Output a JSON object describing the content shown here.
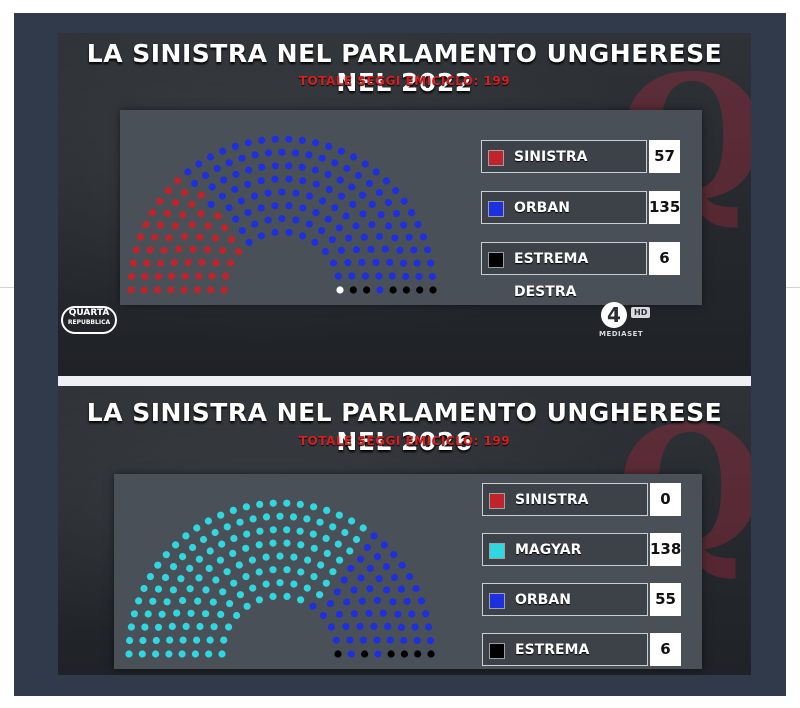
{
  "charts": [
    {
      "title": "LA SINISTRA NEL PARLAMENTO UNGHERESE NEL 2022",
      "subtitle": "TOTALE SEGGI EMICICLO: 199",
      "legend": [
        {
          "label": "SINISTRA",
          "value": "57",
          "color": "#c0242a"
        },
        {
          "label": "ORBAN",
          "value": "135",
          "color": "#1e2fe0"
        },
        {
          "label": "ESTREMA DESTRA",
          "value": "6",
          "color": "#000000"
        }
      ]
    },
    {
      "title": "LA SINISTRA NEL PARLAMENTO UNGHERESE NEL 2026",
      "subtitle": "TOTALE SEGGI EMICICLO: 199",
      "legend": [
        {
          "label": "SINISTRA",
          "value": "0",
          "color": "#c0242a"
        },
        {
          "label": "MAGYAR",
          "value": "138",
          "color": "#2fd8e0"
        },
        {
          "label": "ORBAN",
          "value": "55",
          "color": "#1e2fe0"
        },
        {
          "label": "ESTREMA DESTRA",
          "value": "6",
          "color": "#000000"
        }
      ]
    }
  ],
  "branding": {
    "show_logo": "QUARTA",
    "show_logo_sub": "REPUBBLICA",
    "channel": "4",
    "hd": "HD",
    "network": "MEDIASET",
    "watermark": "Q"
  },
  "chart_data": [
    {
      "type": "parliament",
      "title": "LA SINISTRA NEL PARLAMENTO UNGHERESE NEL 2022",
      "subtitle": "TOTALE SEGGI EMICICLO: 199",
      "categories": [
        "SINISTRA",
        "ORBAN",
        "ESTREMA DESTRA"
      ],
      "values": [
        57,
        135,
        6
      ],
      "colors": [
        "#c0242a",
        "#1e2fe0",
        "#000000"
      ],
      "total_seats": 199,
      "legend_position": "right"
    },
    {
      "type": "parliament",
      "title": "LA SINISTRA NEL PARLAMENTO UNGHERESE NEL 2026",
      "subtitle": "TOTALE SEGGI EMICICLO: 199",
      "categories": [
        "SINISTRA",
        "MAGYAR",
        "ORBAN",
        "ESTREMA DESTRA"
      ],
      "values": [
        0,
        138,
        55,
        6
      ],
      "colors": [
        "#c0242a",
        "#2fd8e0",
        "#1e2fe0",
        "#000000"
      ],
      "total_seats": 199,
      "legend_position": "right"
    }
  ]
}
